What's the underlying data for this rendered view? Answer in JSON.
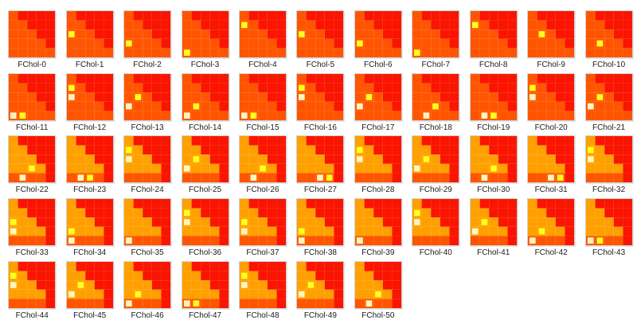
{
  "palette": {
    "red": "#fa1500",
    "orange": "#ff5500",
    "amber": "#ffa000",
    "yellow": "#ffff20",
    "cream": "#fff5c0"
  },
  "thumbnail_icon": "heatmap-thumbnail",
  "files": [
    {
      "name": "FChol-0"
    },
    {
      "name": "FChol-1"
    },
    {
      "name": "FChol-2"
    },
    {
      "name": "FChol-3"
    },
    {
      "name": "FChol-4"
    },
    {
      "name": "FChol-5"
    },
    {
      "name": "FChol-6"
    },
    {
      "name": "FChol-7"
    },
    {
      "name": "FChol-8"
    },
    {
      "name": "FChol-9"
    },
    {
      "name": "FChol-10"
    },
    {
      "name": "FChol-11"
    },
    {
      "name": "FChol-12"
    },
    {
      "name": "FChol-13"
    },
    {
      "name": "FChol-14"
    },
    {
      "name": "FChol-15"
    },
    {
      "name": "FChol-16"
    },
    {
      "name": "FChol-17"
    },
    {
      "name": "FChol-18"
    },
    {
      "name": "FChol-19"
    },
    {
      "name": "FChol-20"
    },
    {
      "name": "FChol-21"
    },
    {
      "name": "FChol-22"
    },
    {
      "name": "FChol-23"
    },
    {
      "name": "FChol-24"
    },
    {
      "name": "FChol-25"
    },
    {
      "name": "FChol-26"
    },
    {
      "name": "FChol-27"
    },
    {
      "name": "FChol-28"
    },
    {
      "name": "FChol-29"
    },
    {
      "name": "FChol-30"
    },
    {
      "name": "FChol-31"
    },
    {
      "name": "FChol-32"
    },
    {
      "name": "FChol-33"
    },
    {
      "name": "FChol-34"
    },
    {
      "name": "FChol-35"
    },
    {
      "name": "FChol-36"
    },
    {
      "name": "FChol-37"
    },
    {
      "name": "FChol-38"
    },
    {
      "name": "FChol-39"
    },
    {
      "name": "FChol-40"
    },
    {
      "name": "FChol-41"
    },
    {
      "name": "FChol-42"
    },
    {
      "name": "FChol-43"
    },
    {
      "name": "FChol-44"
    },
    {
      "name": "FChol-45"
    },
    {
      "name": "FChol-46"
    },
    {
      "name": "FChol-47"
    },
    {
      "name": "FChol-48"
    },
    {
      "name": "FChol-49"
    },
    {
      "name": "FChol-50"
    }
  ]
}
